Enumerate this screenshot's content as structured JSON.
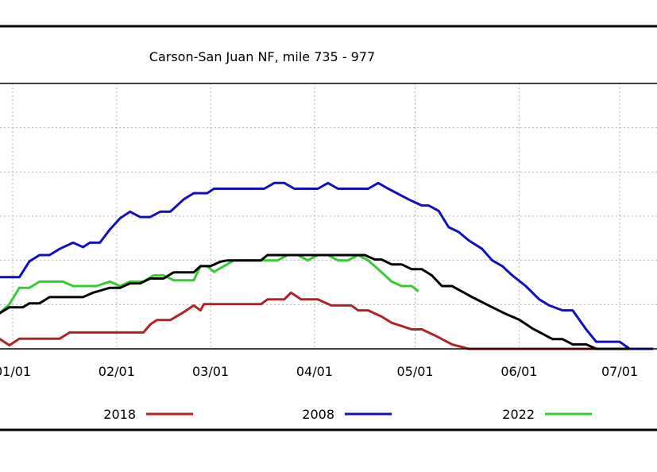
{
  "chart_data": {
    "type": "line",
    "title": "Carson-San Juan NF, mile 735 - 977",
    "xlabel": "",
    "ylabel": "",
    "x_ticks": [
      {
        "label": "01/01",
        "day": 0
      },
      {
        "label": "02/01",
        "day": 31
      },
      {
        "label": "03/01",
        "day": 59
      },
      {
        "label": "04/01",
        "day": 90
      },
      {
        "label": "05/01",
        "day": 120
      },
      {
        "label": "06/01",
        "day": 151
      },
      {
        "label": "07/01",
        "day": 181
      }
    ],
    "x_range_days": [
      -4,
      191
    ],
    "y_range": [
      0,
      6
    ],
    "grid": true,
    "legend_position": "bottom",
    "series": [
      {
        "name": "2018",
        "color": "#b22222",
        "points": [
          [
            -4,
            0.23
          ],
          [
            -1,
            0.08
          ],
          [
            2,
            0.23
          ],
          [
            14,
            0.23
          ],
          [
            17,
            0.37
          ],
          [
            39,
            0.37
          ],
          [
            41,
            0.55
          ],
          [
            43,
            0.65
          ],
          [
            47,
            0.65
          ],
          [
            51,
            0.83
          ],
          [
            54,
            0.98
          ],
          [
            56,
            0.87
          ],
          [
            57,
            1.01
          ],
          [
            74,
            1.01
          ],
          [
            76,
            1.12
          ],
          [
            81,
            1.12
          ],
          [
            83,
            1.27
          ],
          [
            86,
            1.12
          ],
          [
            91,
            1.12
          ],
          [
            95,
            0.98
          ],
          [
            101,
            0.98
          ],
          [
            103,
            0.87
          ],
          [
            106,
            0.87
          ],
          [
            110,
            0.73
          ],
          [
            113,
            0.59
          ],
          [
            119,
            0.44
          ],
          [
            122,
            0.44
          ],
          [
            126,
            0.3
          ],
          [
            131,
            0.1
          ],
          [
            136,
            0.0
          ],
          [
            180,
            0.0
          ],
          [
            187,
            0.0
          ]
        ]
      },
      {
        "name": "2008",
        "color": "#1010c0",
        "points": [
          [
            -4,
            1.62
          ],
          [
            2,
            1.62
          ],
          [
            5,
            1.98
          ],
          [
            8,
            2.12
          ],
          [
            11,
            2.12
          ],
          [
            14,
            2.26
          ],
          [
            18,
            2.4
          ],
          [
            21,
            2.3
          ],
          [
            23,
            2.4
          ],
          [
            26,
            2.4
          ],
          [
            29,
            2.7
          ],
          [
            32,
            2.95
          ],
          [
            35,
            3.1
          ],
          [
            38,
            2.98
          ],
          [
            41,
            2.98
          ],
          [
            44,
            3.1
          ],
          [
            47,
            3.1
          ],
          [
            51,
            3.38
          ],
          [
            54,
            3.52
          ],
          [
            58,
            3.52
          ],
          [
            60,
            3.62
          ],
          [
            64,
            3.62
          ],
          [
            75,
            3.62
          ],
          [
            78,
            3.75
          ],
          [
            81,
            3.75
          ],
          [
            84,
            3.62
          ],
          [
            91,
            3.62
          ],
          [
            94,
            3.75
          ],
          [
            97,
            3.62
          ],
          [
            106,
            3.62
          ],
          [
            109,
            3.75
          ],
          [
            112,
            3.62
          ],
          [
            118,
            3.38
          ],
          [
            122,
            3.24
          ],
          [
            124,
            3.24
          ],
          [
            127,
            3.12
          ],
          [
            130,
            2.75
          ],
          [
            133,
            2.64
          ],
          [
            136,
            2.45
          ],
          [
            140,
            2.26
          ],
          [
            143,
            2.0
          ],
          [
            146,
            1.87
          ],
          [
            149,
            1.66
          ],
          [
            153,
            1.42
          ],
          [
            157,
            1.12
          ],
          [
            160,
            0.98
          ],
          [
            164,
            0.87
          ],
          [
            167,
            0.87
          ],
          [
            171,
            0.44
          ],
          [
            174,
            0.16
          ],
          [
            181,
            0.16
          ],
          [
            184,
            0.0
          ],
          [
            191,
            0.0
          ]
        ]
      },
      {
        "name": "2022",
        "color": "#33cc33",
        "points": [
          [
            -4,
            0.8
          ],
          [
            -1,
            1.01
          ],
          [
            2,
            1.38
          ],
          [
            5,
            1.38
          ],
          [
            8,
            1.52
          ],
          [
            15,
            1.52
          ],
          [
            18,
            1.42
          ],
          [
            25,
            1.42
          ],
          [
            29,
            1.52
          ],
          [
            32,
            1.42
          ],
          [
            35,
            1.52
          ],
          [
            39,
            1.52
          ],
          [
            42,
            1.66
          ],
          [
            45,
            1.66
          ],
          [
            48,
            1.55
          ],
          [
            54,
            1.55
          ],
          [
            56,
            1.87
          ],
          [
            58,
            1.87
          ],
          [
            60,
            1.74
          ],
          [
            63,
            1.87
          ],
          [
            66,
            2.0
          ],
          [
            79,
            2.0
          ],
          [
            82,
            2.12
          ],
          [
            85,
            2.12
          ],
          [
            88,
            2.0
          ],
          [
            91,
            2.12
          ],
          [
            94,
            2.12
          ],
          [
            97,
            2.0
          ],
          [
            100,
            2.0
          ],
          [
            103,
            2.12
          ],
          [
            106,
            2.0
          ],
          [
            109,
            1.8
          ],
          [
            113,
            1.52
          ],
          [
            116,
            1.42
          ],
          [
            119,
            1.42
          ],
          [
            121,
            1.3
          ]
        ]
      },
      {
        "name": "",
        "color": "#000000",
        "points": [
          [
            -4,
            0.8
          ],
          [
            -1,
            0.94
          ],
          [
            3,
            0.94
          ],
          [
            5,
            1.03
          ],
          [
            8,
            1.03
          ],
          [
            11,
            1.17
          ],
          [
            21,
            1.17
          ],
          [
            24,
            1.27
          ],
          [
            29,
            1.38
          ],
          [
            32,
            1.38
          ],
          [
            35,
            1.48
          ],
          [
            38,
            1.48
          ],
          [
            41,
            1.59
          ],
          [
            45,
            1.59
          ],
          [
            48,
            1.73
          ],
          [
            54,
            1.73
          ],
          [
            56,
            1.87
          ],
          [
            59,
            1.87
          ],
          [
            62,
            1.97
          ],
          [
            64,
            2.0
          ],
          [
            74,
            2.0
          ],
          [
            76,
            2.12
          ],
          [
            86,
            2.12
          ],
          [
            105,
            2.12
          ],
          [
            108,
            2.02
          ],
          [
            110,
            2.02
          ],
          [
            113,
            1.91
          ],
          [
            116,
            1.91
          ],
          [
            119,
            1.8
          ],
          [
            122,
            1.8
          ],
          [
            125,
            1.66
          ],
          [
            128,
            1.42
          ],
          [
            131,
            1.42
          ],
          [
            137,
            1.17
          ],
          [
            143,
            0.94
          ],
          [
            147,
            0.79
          ],
          [
            151,
            0.66
          ],
          [
            155,
            0.46
          ],
          [
            161,
            0.22
          ],
          [
            164,
            0.22
          ],
          [
            167,
            0.1
          ],
          [
            171,
            0.1
          ],
          [
            174,
            0.0
          ],
          [
            184,
            0.0
          ]
        ]
      }
    ]
  }
}
